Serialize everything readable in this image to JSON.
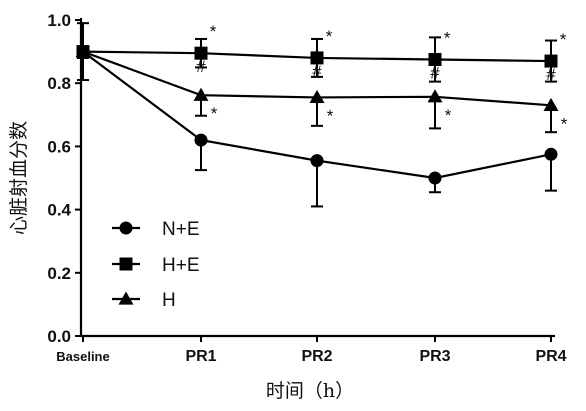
{
  "chart_data": {
    "type": "line",
    "x": [
      "Baseline",
      "PR1",
      "PR2",
      "PR3",
      "PR4"
    ],
    "ylabel": "心脏射血分数",
    "xlabel": "时间（h）",
    "ylim": [
      0.0,
      1.0
    ],
    "yticks": [
      "0.0",
      "0.2",
      "0.4",
      "0.6",
      "0.8",
      "1.0"
    ],
    "legend_position": "lower-left",
    "series": [
      {
        "name": "N+E",
        "marker": "circle",
        "values": [
          0.9,
          0.62,
          0.555,
          0.5,
          0.575
        ],
        "error": [
          0.02,
          0.095,
          0.145,
          0.045,
          0.115
        ]
      },
      {
        "name": "H+E",
        "marker": "square",
        "values": [
          0.9,
          0.895,
          0.88,
          0.875,
          0.87
        ],
        "error": [
          0.09,
          0.045,
          0.06,
          0.07,
          0.065
        ],
        "annotations": {
          "above": [
            "",
            "*",
            "*",
            "*",
            "*"
          ],
          "below": [
            "",
            "#",
            "#",
            "#",
            "#"
          ]
        }
      },
      {
        "name": "H",
        "marker": "triangle",
        "values": [
          0.9,
          0.762,
          0.755,
          0.757,
          0.73
        ],
        "error": [
          0.02,
          0.065,
          0.09,
          0.1,
          0.085
        ],
        "annotations": {
          "right": [
            "",
            "*",
            "*",
            "*",
            "*"
          ]
        }
      }
    ],
    "colors": {
      "ink": "#000000",
      "background": "#ffffff"
    }
  }
}
